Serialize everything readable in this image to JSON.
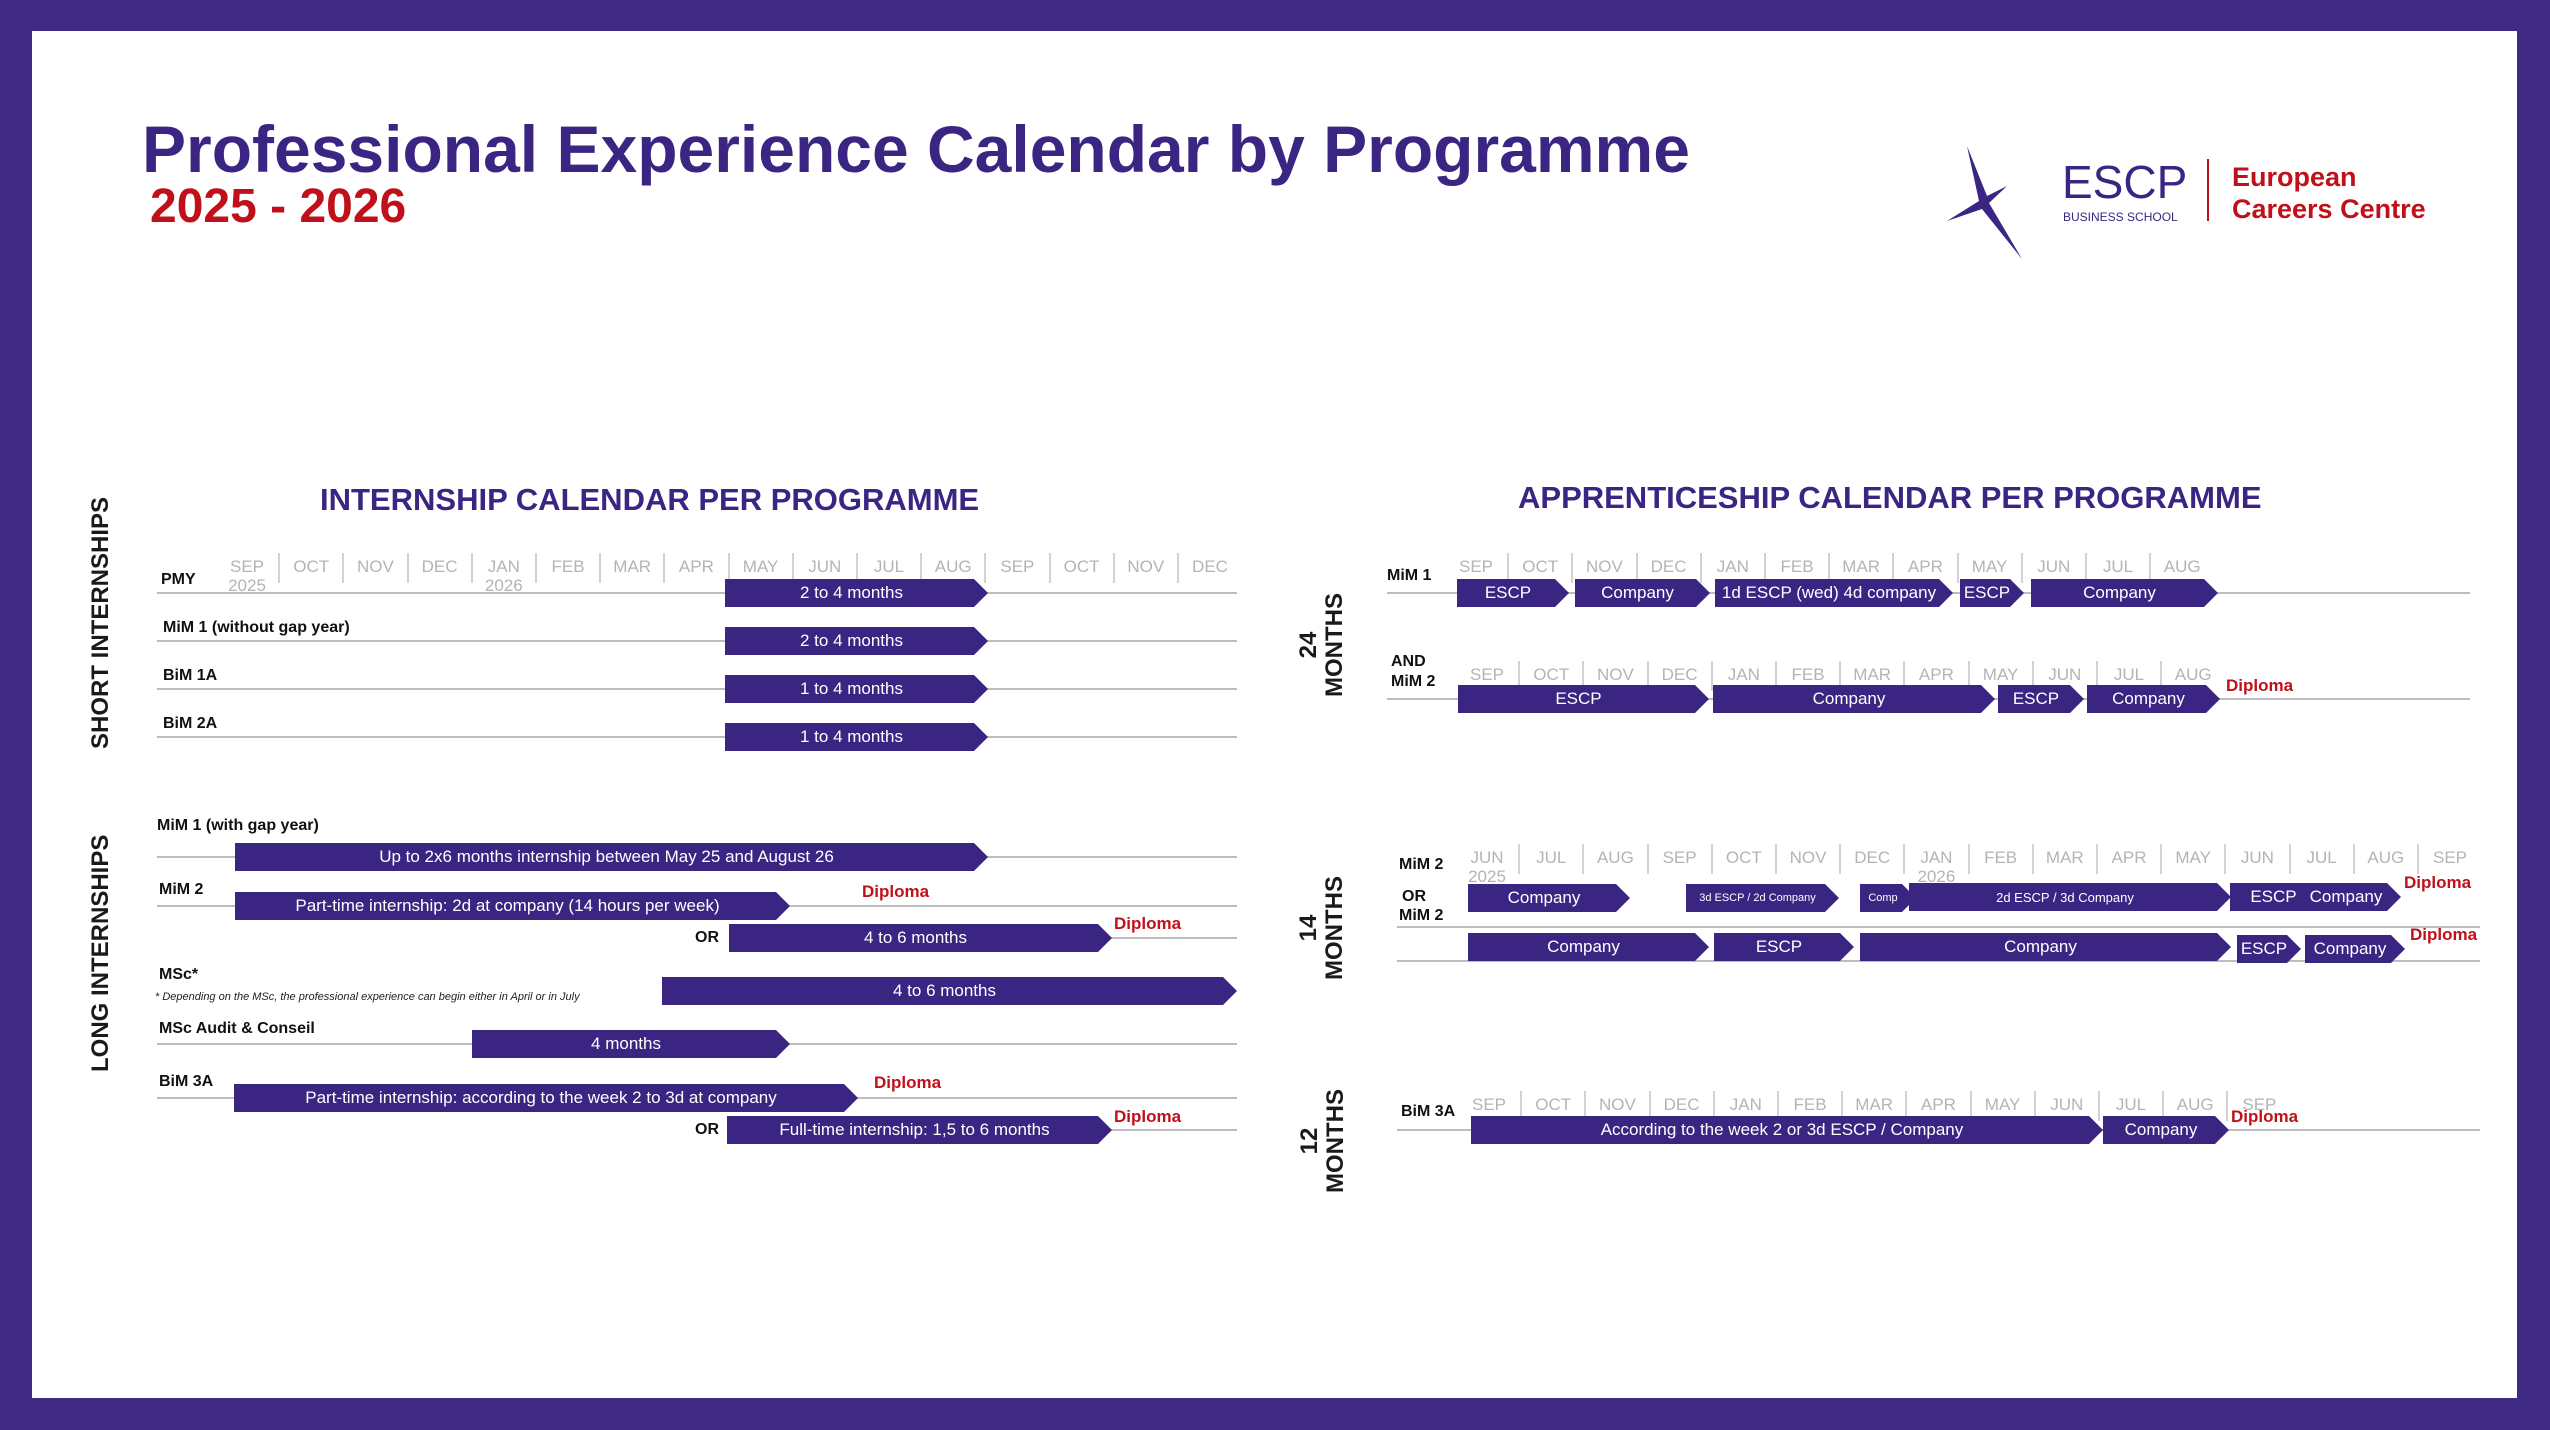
{
  "header": {
    "title": "Professional Experience Calendar by Programme",
    "year": "2025 - 2026"
  },
  "logo": {
    "brand": "ESCP",
    "sub": "BUSINESS SCHOOL",
    "centre_line1": "European",
    "centre_line2": "Careers Centre"
  },
  "colors": {
    "purple": "#3a2583",
    "red": "#c0101a",
    "frame": "#3f2a84"
  },
  "internship": {
    "title": "INTERNSHIP CALENDAR PER PROGRAMME",
    "months": [
      "SEP",
      "OCT",
      "NOV",
      "DEC",
      "JAN",
      "FEB",
      "MAR",
      "APR",
      "MAY",
      "JUN",
      "JUL",
      "AUG",
      "SEP",
      "OCT",
      "NOV",
      "DEC"
    ],
    "year_sep": "2025",
    "year_jan": "2026",
    "short_label": "SHORT INTERNSHIPS",
    "long_label": "LONG INTERNSHIPS",
    "rows": {
      "pmy": {
        "label": "PMY",
        "bar": "2 to 4 months"
      },
      "mim1": {
        "label": "MiM 1 (without gap year)",
        "bar": "2 to 4 months"
      },
      "bim1a": {
        "label": "BiM 1A",
        "bar": "1 to 4 months"
      },
      "bim2a": {
        "label": "BiM 2A",
        "bar": "1 to 4 months"
      },
      "mim1gap": {
        "label": "MiM 1 (with gap year)",
        "bar": "Up to 2x6 months internship between May 25 and August 26"
      },
      "mim2": {
        "label": "MiM 2",
        "bar": "Part-time internship: 2d at company (14 hours per week)",
        "diploma": "Diploma"
      },
      "mim2or": {
        "or": "OR",
        "bar": "4 to 6 months",
        "diploma": "Diploma"
      },
      "msc": {
        "label": "MSc*",
        "note": "* Depending on the MSc, the professional experience can begin either in April or in July",
        "bar": "4 to 6 months"
      },
      "mscaudit": {
        "label": "MSc Audit & Conseil",
        "bar": "4 months"
      },
      "bim3a": {
        "label": "BiM 3A",
        "bar": "Part-time internship: according to the week 2 to 3d at company",
        "diploma": "Diploma"
      },
      "bim3aor": {
        "or": "OR",
        "bar": "Full-time internship: 1,5 to 6 months",
        "diploma": "Diploma"
      }
    }
  },
  "apprenticeship": {
    "title": "APPRENTICESHIP CALENDAR PER PROGRAMME",
    "months_a": [
      "SEP",
      "OCT",
      "NOV",
      "DEC",
      "JAN",
      "FEB",
      "MAR",
      "APR",
      "MAY",
      "JUN",
      "JUL",
      "AUG"
    ],
    "months_c": [
      "JUN",
      "JUL",
      "AUG",
      "SEP",
      "OCT",
      "NOV",
      "DEC",
      "JAN",
      "FEB",
      "MAR",
      "APR",
      "MAY",
      "JUN",
      "JUL",
      "AUG",
      "SEP"
    ],
    "months_d": [
      "SEP",
      "OCT",
      "NOV",
      "DEC",
      "JAN",
      "FEB",
      "MAR",
      "APR",
      "MAY",
      "JUN",
      "JUL",
      "AUG",
      "SEP"
    ],
    "year_2025": "2025",
    "year_2026": "2026",
    "label_24": "24\nMONTHS",
    "label_14": "14\nMONTHS",
    "label_12": "12\nMONTHS",
    "a_mim1": {
      "label": "MiM 1",
      "bars": [
        "ESCP",
        "Company",
        "1d ESCP (wed)  4d company",
        "ESCP",
        "Company"
      ]
    },
    "b_mim2": {
      "and": "AND",
      "label": "MiM 2",
      "bars": [
        "ESCP",
        "Company",
        "ESCP",
        "Company"
      ],
      "diploma": "Diploma"
    },
    "c_mim2": {
      "label": "MiM 2",
      "bars": [
        "Company",
        "3d ESCP / 2d Company",
        "Comp",
        "2d ESCP / 3d Company",
        "ESCP",
        "Company"
      ],
      "diploma": "Diploma"
    },
    "c_mim2b": {
      "or": "OR",
      "label": "MiM 2",
      "bars": [
        "Company",
        "ESCP",
        "Company",
        "ESCP",
        "Company"
      ],
      "diploma": "Diploma"
    },
    "d_bim3a": {
      "label": "BiM 3A",
      "bars": [
        "According to the week 2 or 3d ESCP / Company",
        "Company"
      ],
      "diploma": "Diploma"
    }
  }
}
